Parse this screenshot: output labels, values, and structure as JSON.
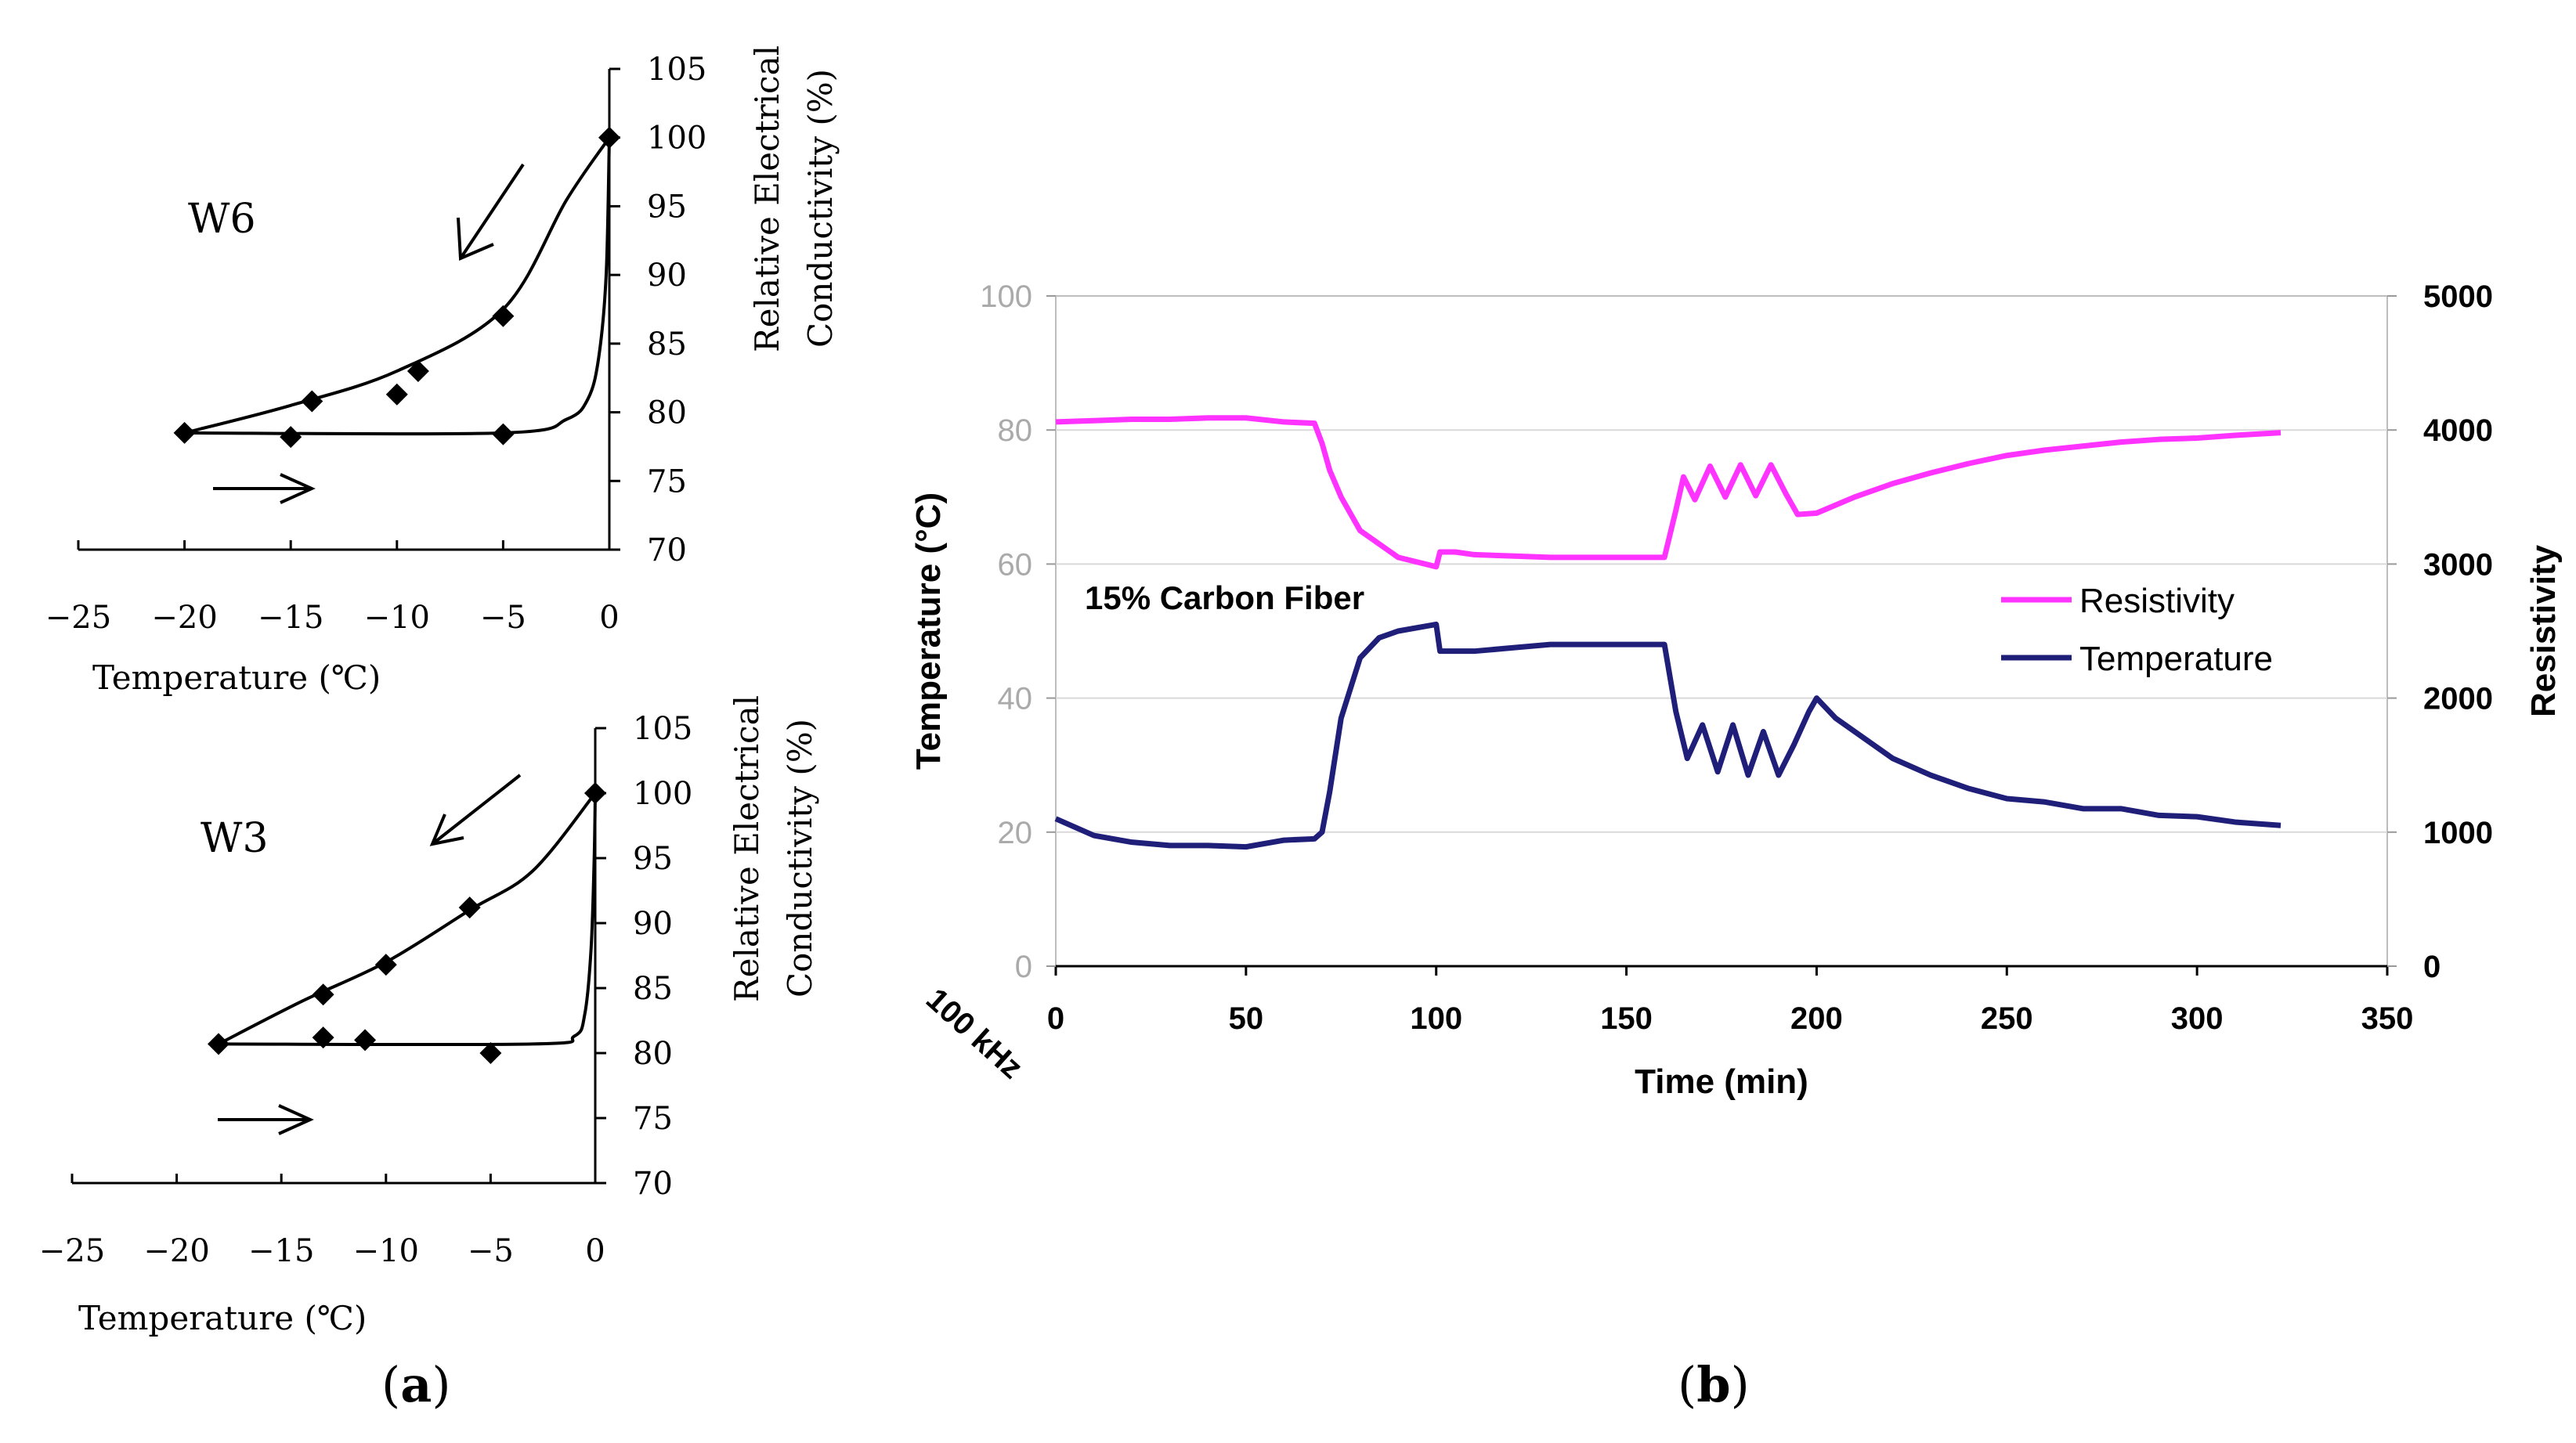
{
  "figure": {
    "caption_a": "(a)",
    "caption_b": "(b)",
    "caption_a_letter": "a",
    "caption_b_letter": "b"
  },
  "chart_data": [
    {
      "type": "scatter",
      "panel": "a-top",
      "label": "W6",
      "title": "",
      "xlabel": "Temperature (℃)",
      "ylabel_line1": "Relative Electrical",
      "ylabel_line2": "Conductivity (%)",
      "xlim": [
        -25,
        0
      ],
      "ylim": [
        70,
        105
      ],
      "xticks": [
        "−25",
        "−20",
        "−15",
        "−10",
        "−5",
        "0"
      ],
      "yticks": [
        "70",
        "75",
        "80",
        "85",
        "90",
        "95",
        "100",
        "105"
      ],
      "points": [
        {
          "x": -20,
          "y": 78.5
        },
        {
          "x": -15,
          "y": 78.2
        },
        {
          "x": -14,
          "y": 80.8
        },
        {
          "x": -10,
          "y": 81.3
        },
        {
          "x": -9,
          "y": 83.0
        },
        {
          "x": -5,
          "y": 78.4
        },
        {
          "x": -5,
          "y": 87.0
        },
        {
          "x": 0,
          "y": 100
        }
      ],
      "cooling_curve": [
        [
          0,
          100
        ],
        [
          -2,
          95.5
        ],
        [
          -5,
          87.5
        ],
        [
          -10,
          83
        ],
        [
          -15,
          80.5
        ],
        [
          -20,
          78.5
        ]
      ],
      "heating_curve": [
        [
          -20,
          78.5
        ],
        [
          -5,
          78.5
        ],
        [
          -2,
          79.5
        ],
        [
          -1,
          81
        ],
        [
          -0.5,
          84
        ],
        [
          -0.15,
          90
        ],
        [
          0,
          100
        ]
      ],
      "arrows": [
        "cooling",
        "heating"
      ]
    },
    {
      "type": "scatter",
      "panel": "a-bottom",
      "label": "W3",
      "title": "",
      "xlabel": "Temperature (℃)",
      "ylabel_line1": "Relative Electrical",
      "ylabel_line2": "Conductivity (%)",
      "xlim": [
        -25,
        0
      ],
      "ylim": [
        70,
        105
      ],
      "xticks": [
        "−25",
        "−20",
        "−15",
        "−10",
        "−5",
        "0"
      ],
      "yticks": [
        "70",
        "75",
        "80",
        "85",
        "90",
        "95",
        "100",
        "105"
      ],
      "points": [
        {
          "x": -18,
          "y": 80.7
        },
        {
          "x": -13,
          "y": 84.5
        },
        {
          "x": -13,
          "y": 81.2
        },
        {
          "x": -11,
          "y": 81.0
        },
        {
          "x": -10,
          "y": 86.8
        },
        {
          "x": -6,
          "y": 91.2
        },
        {
          "x": -5,
          "y": 80.0
        },
        {
          "x": 0,
          "y": 100
        }
      ],
      "cooling_curve": [
        [
          0,
          100
        ],
        [
          -3,
          94
        ],
        [
          -6,
          91
        ],
        [
          -10,
          87
        ],
        [
          -14,
          84
        ],
        [
          -18,
          80.7
        ]
      ],
      "heating_curve": [
        [
          -18,
          80.7
        ],
        [
          -3,
          80.7
        ],
        [
          -1,
          81.3
        ],
        [
          -0.5,
          83
        ],
        [
          -0.2,
          88
        ],
        [
          -0.05,
          95
        ],
        [
          0,
          100
        ]
      ],
      "arrows": [
        "cooling",
        "heating"
      ]
    },
    {
      "type": "line",
      "panel": "b",
      "annotation": "15% Carbon Fiber",
      "corner_label": "100 kHz",
      "xlabel": "Time (min)",
      "ylabel": "Temperature (°C)",
      "y2label": "Resistivity",
      "xlim": [
        0,
        350
      ],
      "ylim": [
        0,
        100
      ],
      "y2lim": [
        0,
        5000
      ],
      "xticks": [
        "0",
        "50",
        "100",
        "150",
        "200",
        "250",
        "300",
        "350"
      ],
      "yticks": [
        "0",
        "20",
        "40",
        "60",
        "80",
        "100"
      ],
      "y2ticks": [
        "0",
        "1000",
        "2000",
        "3000",
        "4000",
        "5000"
      ],
      "grid": true,
      "legend_position": "right",
      "series": [
        {
          "name": "Resistivity",
          "axis": "right",
          "color": "#ff33ff",
          "points": [
            [
              0,
              4060
            ],
            [
              10,
              4070
            ],
            [
              20,
              4080
            ],
            [
              30,
              4080
            ],
            [
              40,
              4090
            ],
            [
              50,
              4090
            ],
            [
              60,
              4060
            ],
            [
              68,
              4050
            ],
            [
              70,
              3900
            ],
            [
              72,
              3700
            ],
            [
              75,
              3500
            ],
            [
              80,
              3250
            ],
            [
              90,
              3050
            ],
            [
              100,
              2980
            ],
            [
              101,
              3090
            ],
            [
              105,
              3090
            ],
            [
              110,
              3070
            ],
            [
              120,
              3060
            ],
            [
              130,
              3050
            ],
            [
              140,
              3050
            ],
            [
              150,
              3050
            ],
            [
              160,
              3050
            ],
            [
              163,
              3400
            ],
            [
              165,
              3650
            ],
            [
              168,
              3480
            ],
            [
              172,
              3730
            ],
            [
              176,
              3500
            ],
            [
              180,
              3740
            ],
            [
              184,
              3510
            ],
            [
              188,
              3740
            ],
            [
              192,
              3520
            ],
            [
              195,
              3370
            ],
            [
              200,
              3380
            ],
            [
              210,
              3500
            ],
            [
              220,
              3600
            ],
            [
              230,
              3680
            ],
            [
              240,
              3750
            ],
            [
              250,
              3810
            ],
            [
              260,
              3850
            ],
            [
              270,
              3880
            ],
            [
              280,
              3910
            ],
            [
              290,
              3930
            ],
            [
              300,
              3940
            ],
            [
              310,
              3960
            ],
            [
              322,
              3980
            ]
          ]
        },
        {
          "name": "Temperature",
          "axis": "left",
          "color": "#1f1f7a",
          "points": [
            [
              0,
              22
            ],
            [
              10,
              19.5
            ],
            [
              20,
              18.5
            ],
            [
              30,
              18
            ],
            [
              40,
              18
            ],
            [
              50,
              17.8
            ],
            [
              60,
              18.8
            ],
            [
              68,
              19
            ],
            [
              70,
              20
            ],
            [
              72,
              26
            ],
            [
              75,
              37
            ],
            [
              80,
              46
            ],
            [
              85,
              49
            ],
            [
              90,
              50
            ],
            [
              100,
              51
            ],
            [
              101,
              47
            ],
            [
              105,
              47
            ],
            [
              110,
              47
            ],
            [
              120,
              47.5
            ],
            [
              130,
              48
            ],
            [
              140,
              48
            ],
            [
              150,
              48
            ],
            [
              160,
              48
            ],
            [
              163,
              38
            ],
            [
              166,
              31
            ],
            [
              170,
              36
            ],
            [
              174,
              29
            ],
            [
              178,
              36
            ],
            [
              182,
              28.5
            ],
            [
              186,
              35
            ],
            [
              190,
              28.5
            ],
            [
              194,
              33
            ],
            [
              198,
              38
            ],
            [
              200,
              40
            ],
            [
              205,
              37
            ],
            [
              210,
              35
            ],
            [
              220,
              31
            ],
            [
              230,
              28.5
            ],
            [
              240,
              26.5
            ],
            [
              250,
              25
            ],
            [
              260,
              24.5
            ],
            [
              270,
              23.5
            ],
            [
              280,
              23.5
            ],
            [
              290,
              22.5
            ],
            [
              300,
              22.3
            ],
            [
              310,
              21.5
            ],
            [
              322,
              21
            ]
          ]
        }
      ]
    }
  ]
}
